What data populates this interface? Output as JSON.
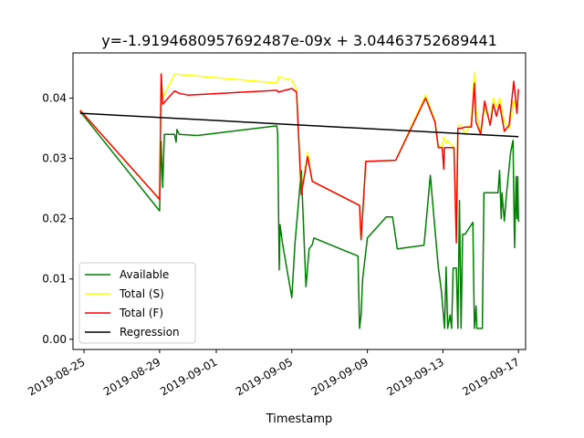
{
  "chart_data": {
    "type": "line",
    "title": "y=-1.9194680957692487e-09x + 3.04463752689441",
    "xlabel": "Timestamp",
    "ylabel": "",
    "x_type": "date",
    "xlim": [
      "2019-08-24T10:00",
      "2019-09-17T09:00"
    ],
    "ylim": [
      -0.0017,
      0.0475
    ],
    "xticks": [
      {
        "value": "2019-08-25",
        "label": "2019-08-25"
      },
      {
        "value": "2019-08-29",
        "label": "2019-08-29"
      },
      {
        "value": "2019-09-01",
        "label": "2019-09-01"
      },
      {
        "value": "2019-09-05",
        "label": "2019-09-05"
      },
      {
        "value": "2019-09-09",
        "label": "2019-09-09"
      },
      {
        "value": "2019-09-13",
        "label": "2019-09-13"
      },
      {
        "value": "2019-09-17",
        "label": "2019-09-17"
      }
    ],
    "yticks": [
      {
        "value": 0.0,
        "label": "0.00"
      },
      {
        "value": 0.01,
        "label": "0.01"
      },
      {
        "value": 0.02,
        "label": "0.02"
      },
      {
        "value": 0.03,
        "label": "0.03"
      },
      {
        "value": 0.04,
        "label": "0.04"
      }
    ],
    "grid": false,
    "legend_position": "lower-left",
    "series": [
      {
        "name": "Available",
        "color": "#008000",
        "points": [
          [
            "2019-08-24T19:00",
            0.0378
          ],
          [
            "2019-08-29T00:00",
            0.0213
          ],
          [
            "2019-08-29T02:00",
            0.0328
          ],
          [
            "2019-08-29T04:00",
            0.0252
          ],
          [
            "2019-08-29T06:00",
            0.034
          ],
          [
            "2019-08-29T19:00",
            0.034
          ],
          [
            "2019-08-29T21:00",
            0.0327
          ],
          [
            "2019-08-29T22:00",
            0.0348
          ],
          [
            "2019-08-30T01:00",
            0.034
          ],
          [
            "2019-08-31T00:00",
            0.0338
          ],
          [
            "2019-09-04T05:00",
            0.0354
          ],
          [
            "2019-09-04T06:00",
            0.034
          ],
          [
            "2019-09-04T08:00",
            0.0115
          ],
          [
            "2019-09-04T09:00",
            0.019
          ],
          [
            "2019-09-04T12:00",
            0.016
          ],
          [
            "2019-09-05T00:00",
            0.0069
          ],
          [
            "2019-09-05T04:00",
            0.016
          ],
          [
            "2019-09-05T12:00",
            0.028
          ],
          [
            "2019-09-05T18:00",
            0.0087
          ],
          [
            "2019-09-05T22:00",
            0.015
          ],
          [
            "2019-09-06T02:00",
            0.0157
          ],
          [
            "2019-09-06T04:00",
            0.0168
          ],
          [
            "2019-09-08T12:00",
            0.0138
          ],
          [
            "2019-09-08T14:00",
            0.0018
          ],
          [
            "2019-09-08T16:00",
            0.004
          ],
          [
            "2019-09-08T18:00",
            0.01
          ],
          [
            "2019-09-09T00:00",
            0.0168
          ],
          [
            "2019-09-10T00:00",
            0.0203
          ],
          [
            "2019-09-10T08:00",
            0.0203
          ],
          [
            "2019-09-10T14:00",
            0.015
          ],
          [
            "2019-09-12T00:00",
            0.0156
          ],
          [
            "2019-09-12T08:00",
            0.0272
          ],
          [
            "2019-09-12T12:00",
            0.021
          ],
          [
            "2019-09-12T18:00",
            0.012
          ],
          [
            "2019-09-12T22:00",
            0.008
          ],
          [
            "2019-09-13T02:00",
            0.0018
          ],
          [
            "2019-09-13T04:00",
            0.012
          ],
          [
            "2019-09-13T06:00",
            0.0018
          ],
          [
            "2019-09-13T09:00",
            0.004
          ],
          [
            "2019-09-13T11:00",
            0.0018
          ],
          [
            "2019-09-13T13:00",
            0.0118
          ],
          [
            "2019-09-13T17:00",
            0.0118
          ],
          [
            "2019-09-13T19:00",
            0.0018
          ],
          [
            "2019-09-13T21:00",
            0.023
          ],
          [
            "2019-09-13T23:00",
            0.0018
          ],
          [
            "2019-09-14T01:00",
            0.0174
          ],
          [
            "2019-09-14T04:00",
            0.0174
          ],
          [
            "2019-09-14T14:00",
            0.0194
          ],
          [
            "2019-09-14T16:00",
            0.0018
          ],
          [
            "2019-09-14T18:00",
            0.0055
          ],
          [
            "2019-09-14T19:00",
            0.0018
          ],
          [
            "2019-09-15T02:00",
            0.0018
          ],
          [
            "2019-09-15T04:00",
            0.0243
          ],
          [
            "2019-09-15T22:00",
            0.0243
          ],
          [
            "2019-09-16T00:00",
            0.028
          ],
          [
            "2019-09-16T02:00",
            0.02
          ],
          [
            "2019-09-16T03:00",
            0.0243
          ],
          [
            "2019-09-16T06:00",
            0.0196
          ],
          [
            "2019-09-16T09:00",
            0.0245
          ],
          [
            "2019-09-16T14:00",
            0.031
          ],
          [
            "2019-09-16T17:00",
            0.033
          ],
          [
            "2019-09-16T19:00",
            0.0152
          ],
          [
            "2019-09-16T21:00",
            0.027
          ],
          [
            "2019-09-16T22:00",
            0.02
          ],
          [
            "2019-09-16T23:00",
            0.027
          ],
          [
            "2019-09-17T00:00",
            0.0195
          ]
        ]
      },
      {
        "name": "Total (S)",
        "color": "#ffff00",
        "points": [
          [
            "2019-08-24T19:00",
            0.038
          ],
          [
            "2019-08-29T00:00",
            0.0232
          ],
          [
            "2019-08-29T02:00",
            0.044
          ],
          [
            "2019-08-29T04:00",
            0.04
          ],
          [
            "2019-08-29T19:00",
            0.044
          ],
          [
            "2019-08-30T12:00",
            0.0438
          ],
          [
            "2019-09-04T05:00",
            0.0425
          ],
          [
            "2019-09-04T07:00",
            0.0435
          ],
          [
            "2019-09-05T00:00",
            0.043
          ],
          [
            "2019-09-05T06:00",
            0.0415
          ],
          [
            "2019-09-05T12:00",
            0.024
          ],
          [
            "2019-09-05T20:00",
            0.031
          ],
          [
            "2019-09-06T02:00",
            0.0262
          ],
          [
            "2019-09-08T14:00",
            0.0222
          ],
          [
            "2019-09-08T16:00",
            0.0166
          ],
          [
            "2019-09-08T22:00",
            0.0295
          ],
          [
            "2019-09-10T12:00",
            0.0297
          ],
          [
            "2019-09-12T02:00",
            0.0405
          ],
          [
            "2019-09-12T14:00",
            0.0362
          ],
          [
            "2019-09-12T18:00",
            0.032
          ],
          [
            "2019-09-12T23:00",
            0.032
          ],
          [
            "2019-09-13T01:00",
            0.0335
          ],
          [
            "2019-09-13T04:00",
            0.0325
          ],
          [
            "2019-09-13T06:00",
            0.033
          ],
          [
            "2019-09-13T09:00",
            0.0325
          ],
          [
            "2019-09-13T14:00",
            0.0318
          ],
          [
            "2019-09-13T17:00",
            0.0165
          ],
          [
            "2019-09-13T19:00",
            0.0355
          ],
          [
            "2019-09-13T23:00",
            0.0355
          ],
          [
            "2019-09-14T04:00",
            0.034
          ],
          [
            "2019-09-14T12:00",
            0.036
          ],
          [
            "2019-09-14T16:00",
            0.0443
          ],
          [
            "2019-09-14T18:00",
            0.038
          ],
          [
            "2019-09-15T00:00",
            0.0345
          ],
          [
            "2019-09-15T05:00",
            0.0385
          ],
          [
            "2019-09-15T12:00",
            0.036
          ],
          [
            "2019-09-15T16:00",
            0.04
          ],
          [
            "2019-09-15T20:00",
            0.0385
          ],
          [
            "2019-09-16T00:00",
            0.04
          ],
          [
            "2019-09-16T06:00",
            0.036
          ],
          [
            "2019-09-16T12:00",
            0.035
          ],
          [
            "2019-09-16T18:00",
            0.0395
          ],
          [
            "2019-09-16T22:00",
            0.038
          ],
          [
            "2019-09-17T00:00",
            0.041
          ]
        ]
      },
      {
        "name": "Total (F)",
        "color": "#ff0000",
        "points": [
          [
            "2019-08-24T19:00",
            0.038
          ],
          [
            "2019-08-29T00:00",
            0.0232
          ],
          [
            "2019-08-29T02:00",
            0.044
          ],
          [
            "2019-08-29T04:00",
            0.039
          ],
          [
            "2019-08-29T19:00",
            0.0412
          ],
          [
            "2019-08-30T01:00",
            0.0408
          ],
          [
            "2019-08-30T12:00",
            0.0405
          ],
          [
            "2019-09-04T05:00",
            0.0413
          ],
          [
            "2019-09-04T07:00",
            0.041
          ],
          [
            "2019-09-05T00:00",
            0.0416
          ],
          [
            "2019-09-05T06:00",
            0.041
          ],
          [
            "2019-09-05T12:00",
            0.024
          ],
          [
            "2019-09-05T20:00",
            0.0303
          ],
          [
            "2019-09-06T02:00",
            0.0262
          ],
          [
            "2019-09-08T14:00",
            0.0222
          ],
          [
            "2019-09-08T16:00",
            0.0165
          ],
          [
            "2019-09-08T22:00",
            0.0295
          ],
          [
            "2019-09-10T12:00",
            0.0297
          ],
          [
            "2019-09-12T02:00",
            0.04
          ],
          [
            "2019-09-12T14:00",
            0.036
          ],
          [
            "2019-09-12T18:00",
            0.0318
          ],
          [
            "2019-09-12T23:00",
            0.0318
          ],
          [
            "2019-09-13T01:00",
            0.0282
          ],
          [
            "2019-09-13T02:00",
            0.0318
          ],
          [
            "2019-09-13T14:00",
            0.0318
          ],
          [
            "2019-09-13T17:00",
            0.016
          ],
          [
            "2019-09-13T19:00",
            0.035
          ],
          [
            "2019-09-13T23:00",
            0.035
          ],
          [
            "2019-09-14T04:00",
            0.0352
          ],
          [
            "2019-09-14T12:00",
            0.0352
          ],
          [
            "2019-09-14T16:00",
            0.0425
          ],
          [
            "2019-09-14T18:00",
            0.036
          ],
          [
            "2019-09-15T00:00",
            0.034
          ],
          [
            "2019-09-15T05:00",
            0.0395
          ],
          [
            "2019-09-15T12:00",
            0.0355
          ],
          [
            "2019-09-15T16:00",
            0.039
          ],
          [
            "2019-09-15T20:00",
            0.037
          ],
          [
            "2019-09-16T00:00",
            0.039
          ],
          [
            "2019-09-16T06:00",
            0.0345
          ],
          [
            "2019-09-16T12:00",
            0.0355
          ],
          [
            "2019-09-16T18:00",
            0.0428
          ],
          [
            "2019-09-16T22:00",
            0.0375
          ],
          [
            "2019-09-17T00:00",
            0.0415
          ]
        ]
      },
      {
        "name": "Regression",
        "color": "#000000",
        "points": [
          [
            "2019-08-24T19:00",
            0.0375
          ],
          [
            "2019-09-17T00:00",
            0.0336
          ]
        ]
      }
    ]
  }
}
